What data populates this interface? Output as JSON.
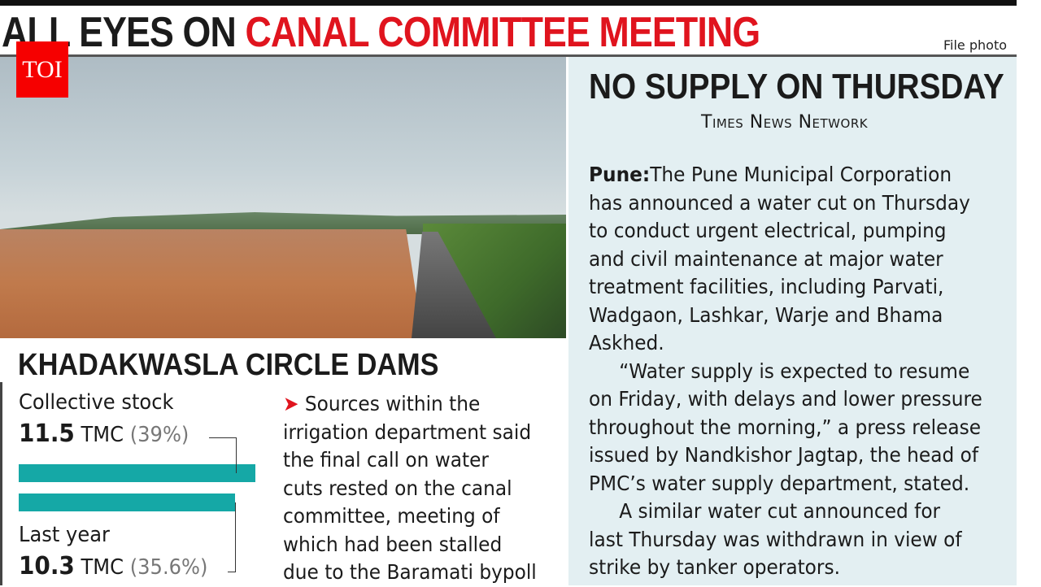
{
  "headline": {
    "black": "ALL EYES ON",
    "red": "CANAL COMMITTEE MEETING"
  },
  "photo_credit": "File photo",
  "logo": "TOI",
  "story": {
    "title": "NO SUPPLY ON THURSDAY",
    "byline": "Times News Network",
    "dateline": "Pune:",
    "lines": [
      "The Pune Municipal Corporation",
      "has announced a water cut on Thursday",
      "to conduct urgent electrical, pumping",
      "and civil maintenance at major water",
      "treatment facilities, including Parvati,",
      "Wadgaon, Lashkar, Warje and Bhama",
      "Askhed.",
      "“Water supply is expected to resume",
      "on Friday, with delays and lower pressure",
      "throughout the morning,” a press release",
      "issued by Nandkishor Jagtap, the head of",
      "PMC’s water supply department, stated.",
      "A similar water cut announced for",
      "last Thursday was withdrawn in view of",
      "strike by tanker operators."
    ]
  },
  "dams": {
    "title": "KHADAKWASLA CIRCLE DAMS",
    "current": {
      "label": "Collective stock",
      "value": "11.5",
      "unit": "TMC",
      "percent": "(39%)",
      "percent_value": 39
    },
    "last_year": {
      "label": "Last year",
      "value": "10.3",
      "unit": "TMC",
      "percent": "(35.6%)",
      "percent_value": 35.6
    },
    "bar_color": "#15a8a6"
  },
  "sidebar": {
    "arrow": "➤",
    "lines": [
      "Sources within the",
      "irrigation department said",
      "the final call on water",
      "cuts rested on the canal",
      "committee, meeting of",
      "which had been stalled",
      "due to the Baramati bypoll"
    ]
  }
}
